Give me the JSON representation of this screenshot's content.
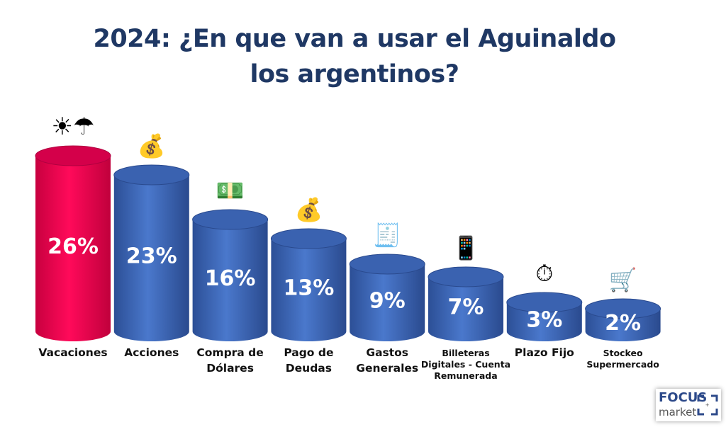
{
  "chart_data": {
    "type": "bar",
    "title": "2024: ¿En que van a usar el Aguinaldo los argentinos?",
    "title_lines": [
      "2024: ¿En que van a usar el Aguinaldo",
      "los argentinos?"
    ],
    "categories": [
      [
        "Vacaciones"
      ],
      [
        "Acciones"
      ],
      [
        "Compra de",
        "Dólares"
      ],
      [
        "Pago de",
        "Deudas"
      ],
      [
        "Gastos",
        "Generales"
      ],
      [
        "Billeteras",
        "Digitales - Cuenta",
        "Remunerada"
      ],
      [
        "Plazo Fijo"
      ],
      [
        "Stockeo",
        "Supermercado"
      ]
    ],
    "values": [
      26,
      23,
      16,
      13,
      9,
      7,
      3,
      2
    ],
    "labels": [
      "26%",
      "23%",
      "16%",
      "13%",
      "9%",
      "7%",
      "3%",
      "2%"
    ],
    "icons": [
      "beach-umbrella-icon",
      "money-bag-network-icon",
      "cash-exchange-icon",
      "hand-money-bag-icon",
      "pos-terminal-icon",
      "phone-wallet-icon",
      "stopwatch-dollar-icon",
      "shopping-cart-icon"
    ],
    "colors": {
      "highlight": "#e8004f",
      "bar": "#3d66b8",
      "title": "#1f3864"
    },
    "unit": "%"
  },
  "logo": {
    "line1": "FOCUS",
    "line2": "market"
  }
}
